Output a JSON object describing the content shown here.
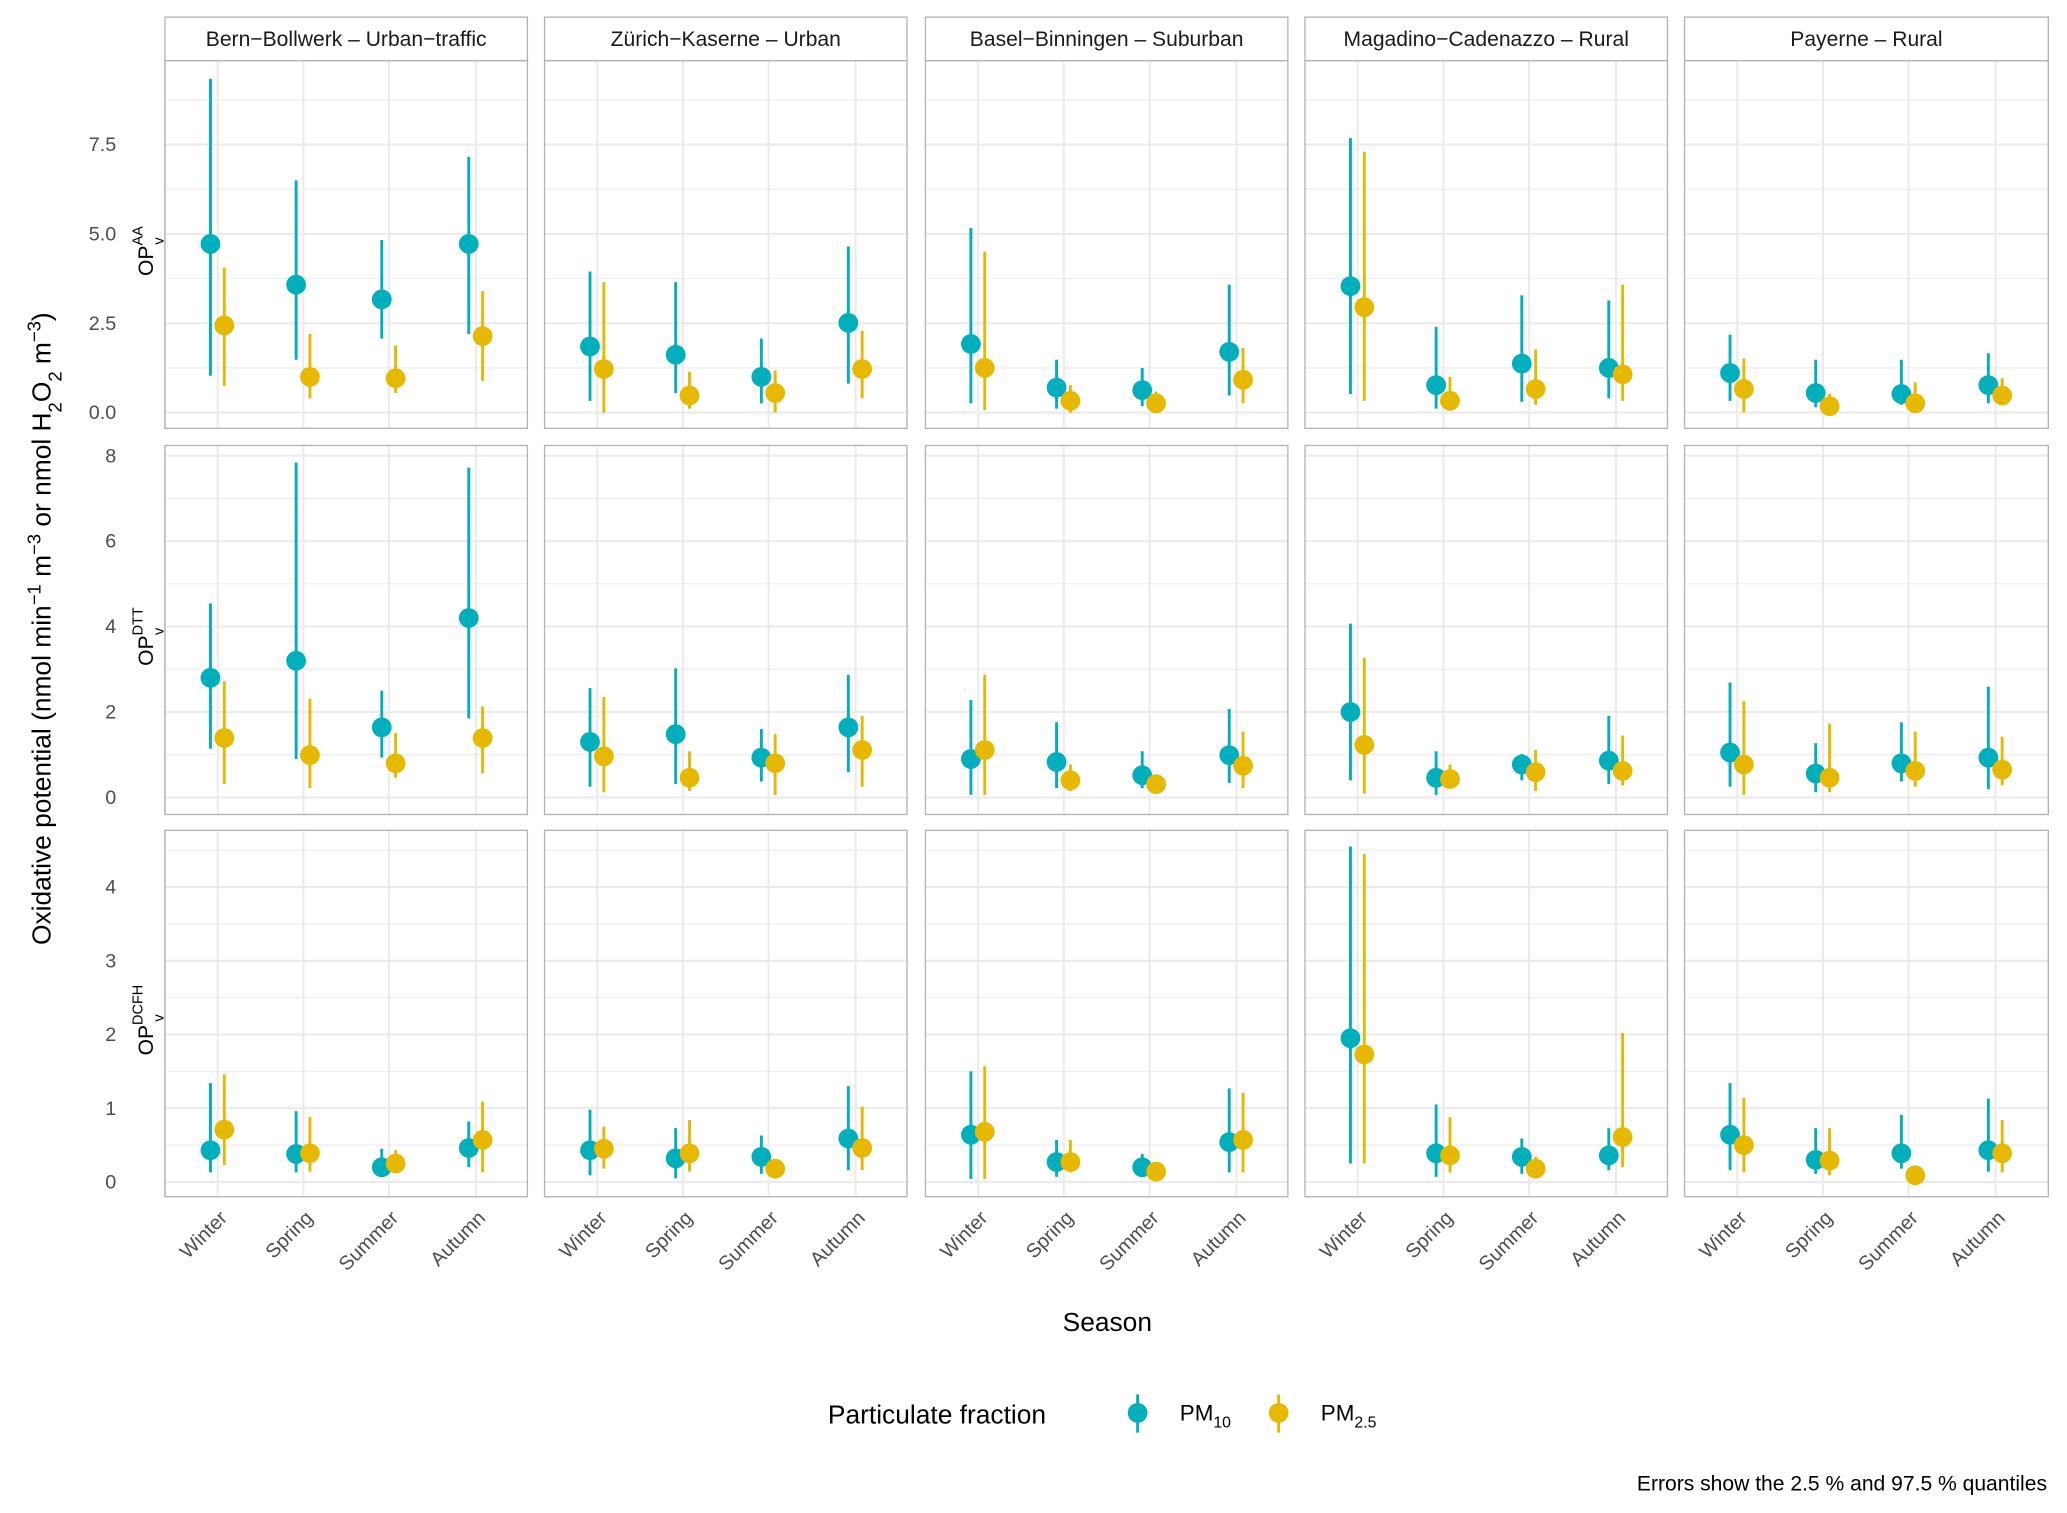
{
  "chart_data": {
    "type": "pointrange",
    "xlabel": "Season",
    "ylabel_parts": [
      [
        "Oxidative potential (nmol min",
        ""
      ],
      [
        "−1",
        "super"
      ],
      [
        " m",
        ""
      ],
      [
        "−3",
        "super"
      ],
      [
        " or nmol H",
        ""
      ],
      [
        "2",
        "sub"
      ],
      [
        "O",
        ""
      ],
      [
        "2",
        "sub"
      ],
      [
        " m",
        ""
      ],
      [
        "−3",
        "super"
      ],
      [
        ")",
        ""
      ]
    ],
    "caption": "Errors show the 2.5 % and 97.5 % quantiles",
    "legend": {
      "title": "Particulate fraction",
      "position": "bottom",
      "entries": [
        {
          "name": "PM",
          "sub": "10",
          "color": "#00AFBB"
        },
        {
          "name": "PM",
          "sub": "2.5",
          "color": "#E7B800"
        }
      ]
    },
    "categories": [
      "Winter",
      "Spring",
      "Summer",
      "Autumn"
    ],
    "sites": [
      "Bern−Bollwerk – Urban−traffic",
      "Zürich−Kaserne – Urban",
      "Basel−Binningen – Suburban",
      "Magadino−Cadenazzo – Rural",
      "Payerne – Rural"
    ],
    "panels_rows": [
      {
        "label": "OP",
        "sup": "AA",
        "sub": "v",
        "ylim": [
          -0.44,
          9.85
        ],
        "ticks": [
          0,
          2.5,
          5,
          7.5
        ],
        "tick_labels": [
          "0.0",
          "2.5",
          "5.0",
          "7.5"
        ],
        "data": [
          {
            "PM10": [
              [
                4.72,
                1.03,
                9.34
              ],
              [
                3.58,
                1.48,
                6.5
              ],
              [
                3.17,
                2.07,
                4.83
              ],
              [
                4.72,
                2.2,
                7.16
              ]
            ],
            "PM2.5": [
              [
                2.44,
                0.74,
                4.06
              ],
              [
                1.0,
                0.4,
                2.2
              ],
              [
                0.96,
                0.55,
                1.88
              ],
              [
                2.14,
                0.89,
                3.4
              ]
            ]
          },
          {
            "PM10": [
              [
                1.85,
                0.33,
                3.95
              ],
              [
                1.62,
                0.55,
                3.65
              ],
              [
                1.0,
                0.26,
                2.07
              ],
              [
                2.51,
                0.81,
                4.65
              ]
            ],
            "PM2.5": [
              [
                1.22,
                0.0,
                3.65
              ],
              [
                0.48,
                0.11,
                1.14
              ],
              [
                0.55,
                0.0,
                1.18
              ],
              [
                1.22,
                0.4,
                2.29
              ]
            ]
          },
          {
            "PM10": [
              [
                1.92,
                0.26,
                5.17
              ],
              [
                0.7,
                0.11,
                1.48
              ],
              [
                0.63,
                0.18,
                1.25
              ],
              [
                1.7,
                0.48,
                3.58
              ]
            ],
            "PM2.5": [
              [
                1.25,
                0.07,
                4.5
              ],
              [
                0.33,
                0.0,
                0.77
              ],
              [
                0.26,
                0.0,
                0.59
              ],
              [
                0.92,
                0.26,
                1.81
              ]
            ]
          },
          {
            "PM10": [
              [
                3.54,
                0.52,
                7.68
              ],
              [
                0.77,
                0.11,
                2.4
              ],
              [
                1.37,
                0.3,
                3.28
              ],
              [
                1.25,
                0.4,
                3.14
              ]
            ],
            "PM2.5": [
              [
                2.95,
                0.33,
                7.3
              ],
              [
                0.33,
                0.07,
                1.0
              ],
              [
                0.66,
                0.22,
                1.77
              ],
              [
                1.07,
                0.33,
                3.58
              ]
            ]
          },
          {
            "PM10": [
              [
                1.11,
                0.33,
                2.18
              ],
              [
                0.55,
                0.15,
                1.48
              ],
              [
                0.52,
                0.22,
                1.48
              ],
              [
                0.77,
                0.26,
                1.66
              ]
            ],
            "PM2.5": [
              [
                0.66,
                0.0,
                1.51
              ],
              [
                0.18,
                0.0,
                0.52
              ],
              [
                0.26,
                0.0,
                0.85
              ],
              [
                0.48,
                0.26,
                0.96
              ]
            ]
          }
        ]
      },
      {
        "label": "OP",
        "sup": "DTT",
        "sub": "v",
        "ylim": [
          -0.4,
          8.24
        ],
        "ticks": [
          0,
          2,
          4,
          6,
          8
        ],
        "tick_labels": [
          "0",
          "2",
          "4",
          "6",
          "8"
        ],
        "data": [
          {
            "PM10": [
              [
                2.8,
                1.14,
                4.54
              ],
              [
                3.2,
                0.9,
                7.84
              ],
              [
                1.64,
                0.93,
                2.5
              ],
              [
                4.2,
                1.85,
                7.72
              ]
            ],
            "PM2.5": [
              [
                1.39,
                0.31,
                2.72
              ],
              [
                0.99,
                0.22,
                2.31
              ],
              [
                0.8,
                0.46,
                1.51
              ],
              [
                1.39,
                0.56,
                2.13
              ]
            ]
          },
          {
            "PM10": [
              [
                1.3,
                0.25,
                2.56
              ],
              [
                1.48,
                0.31,
                3.02
              ],
              [
                0.93,
                0.37,
                1.6
              ],
              [
                1.64,
                0.59,
                2.87
              ]
            ],
            "PM2.5": [
              [
                0.96,
                0.12,
                2.35
              ],
              [
                0.46,
                0.15,
                1.08
              ],
              [
                0.8,
                0.06,
                1.48
              ],
              [
                1.11,
                0.25,
                1.91
              ]
            ]
          },
          {
            "PM10": [
              [
                0.9,
                0.06,
                2.28
              ],
              [
                0.83,
                0.22,
                1.76
              ],
              [
                0.52,
                0.22,
                1.08
              ],
              [
                0.99,
                0.34,
                2.07
              ]
            ],
            "PM2.5": [
              [
                1.11,
                0.06,
                2.87
              ],
              [
                0.4,
                0.15,
                0.77
              ],
              [
                0.31,
                0.15,
                0.52
              ],
              [
                0.74,
                0.22,
                1.54
              ]
            ]
          },
          {
            "PM10": [
              [
                2.0,
                0.4,
                4.07
              ],
              [
                0.46,
                0.06,
                1.08
              ],
              [
                0.77,
                0.4,
                1.02
              ],
              [
                0.86,
                0.31,
                1.91
              ]
            ],
            "PM2.5": [
              [
                1.23,
                0.09,
                3.27
              ],
              [
                0.43,
                0.22,
                0.77
              ],
              [
                0.59,
                0.15,
                1.11
              ],
              [
                0.62,
                0.28,
                1.45
              ]
            ]
          },
          {
            "PM10": [
              [
                1.05,
                0.25,
                2.69
              ],
              [
                0.56,
                0.12,
                1.27
              ],
              [
                0.8,
                0.37,
                1.76
              ],
              [
                0.93,
                0.19,
                2.59
              ]
            ],
            "PM2.5": [
              [
                0.77,
                0.06,
                2.25
              ],
              [
                0.46,
                0.12,
                1.73
              ],
              [
                0.62,
                0.25,
                1.54
              ],
              [
                0.65,
                0.28,
                1.42
              ]
            ]
          }
        ]
      },
      {
        "label": "OP",
        "sup": "DCFH",
        "sub": "v",
        "ylim": [
          -0.2,
          4.77
        ],
        "ticks": [
          0,
          1,
          2,
          3,
          4
        ],
        "tick_labels": [
          "0",
          "1",
          "2",
          "3",
          "4"
        ],
        "data": [
          {
            "PM10": [
              [
                0.43,
                0.13,
                1.34
              ],
              [
                0.38,
                0.13,
                0.96
              ],
              [
                0.2,
                0.09,
                0.45
              ],
              [
                0.46,
                0.2,
                0.82
              ]
            ],
            "PM2.5": [
              [
                0.71,
                0.23,
                1.46
              ],
              [
                0.39,
                0.14,
                0.88
              ],
              [
                0.25,
                0.14,
                0.43
              ],
              [
                0.57,
                0.13,
                1.09
              ]
            ]
          },
          {
            "PM10": [
              [
                0.43,
                0.09,
                0.98
              ],
              [
                0.32,
                0.05,
                0.73
              ],
              [
                0.34,
                0.11,
                0.63
              ],
              [
                0.59,
                0.16,
                1.3
              ]
            ],
            "PM2.5": [
              [
                0.45,
                0.18,
                0.75
              ],
              [
                0.39,
                0.14,
                0.84
              ],
              [
                0.18,
                0.09,
                0.27
              ],
              [
                0.46,
                0.16,
                1.02
              ]
            ]
          },
          {
            "PM10": [
              [
                0.64,
                0.04,
                1.5
              ],
              [
                0.27,
                0.07,
                0.57
              ],
              [
                0.2,
                0.09,
                0.38
              ],
              [
                0.54,
                0.13,
                1.27
              ]
            ],
            "PM2.5": [
              [
                0.68,
                0.04,
                1.57
              ],
              [
                0.27,
                0.13,
                0.57
              ],
              [
                0.14,
                0.05,
                0.23
              ],
              [
                0.57,
                0.13,
                1.21
              ]
            ]
          },
          {
            "PM10": [
              [
                1.95,
                0.25,
                4.55
              ],
              [
                0.39,
                0.07,
                1.05
              ],
              [
                0.34,
                0.11,
                0.59
              ],
              [
                0.36,
                0.16,
                0.73
              ]
            ],
            "PM2.5": [
              [
                1.73,
                0.25,
                4.45
              ],
              [
                0.36,
                0.13,
                0.88
              ],
              [
                0.18,
                0.07,
                0.34
              ],
              [
                0.61,
                0.2,
                2.02
              ]
            ]
          },
          {
            "PM10": [
              [
                0.64,
                0.16,
                1.34
              ],
              [
                0.3,
                0.11,
                0.73
              ],
              [
                0.39,
                0.18,
                0.91
              ],
              [
                0.43,
                0.14,
                1.13
              ]
            ],
            "PM2.5": [
              [
                0.5,
                0.13,
                1.14
              ],
              [
                0.29,
                0.09,
                0.73
              ],
              [
                0.09,
                0.02,
                0.21
              ],
              [
                0.39,
                0.13,
                0.84
              ]
            ]
          }
        ]
      }
    ]
  }
}
